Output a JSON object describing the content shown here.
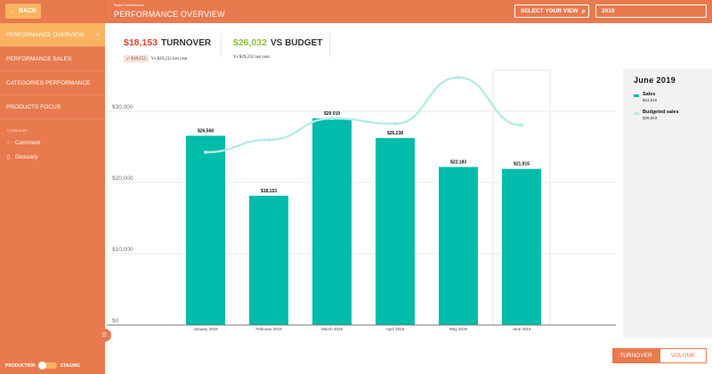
{
  "header": {
    "back_label": "BACK",
    "breadcrumb": "Sales Performance",
    "title": "PERFORMANCE OVERVIEW",
    "view_select": "SELECT YOUR VIEW",
    "year": "2019"
  },
  "sidebar": {
    "items": [
      {
        "label": "PERFORMANCE OVERVIEW",
        "active": true
      },
      {
        "label": "PERFORMANCE SALES"
      },
      {
        "label": "CATEGORIES PERFORMANCE"
      },
      {
        "label": "PRODUCTS FOCUS"
      }
    ],
    "collab_title": "Collaborate",
    "collab": [
      {
        "label": "Comment",
        "icon": "comment-icon"
      },
      {
        "label": "Glossary",
        "icon": "book-icon"
      }
    ],
    "toggle": {
      "left": "PRODUCTION",
      "right": "STAGING"
    }
  },
  "kpis": {
    "turnover": {
      "value": "$18,153",
      "label": "TURNOVER",
      "badge": "$18,153",
      "sub": "Vs $29,232 last year",
      "color": "#e0462b"
    },
    "budget": {
      "value": "$26,032",
      "label": "VS BUDGET",
      "sub": "Vs $29,232 last year",
      "color": "#8cbf3f"
    }
  },
  "legend": {
    "title": "June 2019",
    "items": [
      {
        "name": "Sales",
        "value": "$21,915",
        "color": "#00bcaa"
      },
      {
        "name": "Budgeted sales",
        "value": "$28,063",
        "color": "#b6ece6"
      }
    ]
  },
  "buttons": {
    "turnover": "TURNOVER",
    "volume": "VOLUME"
  },
  "chart_data": {
    "type": "bar",
    "categories": [
      "January 2019",
      "February 2019",
      "March 2019",
      "April 2019",
      "May 2019",
      "June 2019"
    ],
    "series": [
      {
        "name": "Sales",
        "type": "bar",
        "values": [
          26568,
          18153,
          29019,
          26238,
          22183,
          21915
        ],
        "labels": [
          "$26,568",
          "$18,153",
          "$29 019",
          "$26,238",
          "$22,183",
          "$21,915"
        ],
        "color": "#00bcaa"
      },
      {
        "name": "Budgeted sales",
        "type": "line",
        "values": [
          24250,
          26000,
          29000,
          28250,
          34750,
          28063
        ],
        "color": "#b6ece6"
      }
    ],
    "yticks": [
      {
        "v": 0,
        "label": "$0"
      },
      {
        "v": 10000,
        "label": "$10,000"
      },
      {
        "v": 20000,
        "label": "$20,000"
      },
      {
        "v": 30000,
        "label": "$30,000"
      }
    ],
    "ylim": [
      0,
      36000
    ],
    "highlighted": "June 2019",
    "grid": true
  }
}
